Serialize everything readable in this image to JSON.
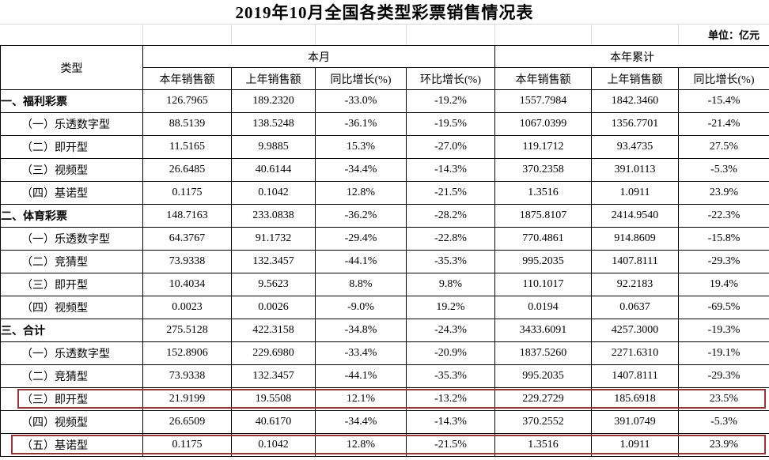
{
  "title": "2019年10月全国各类型彩票销售情况表",
  "unit_label": "单位：亿元",
  "colors": {
    "highlight_border": "#963634",
    "grid_line": "#d9d9d9",
    "table_border": "#000000"
  },
  "table": {
    "type_header": "类型",
    "month_group": "本月",
    "ytd_group": "本年累计",
    "sub_headers": [
      "本年销售额",
      "上年销售额",
      "同比增长(%)",
      "环比增长(%)",
      "本年销售额",
      "上年销售额",
      "同比增长(%)"
    ],
    "rows": [
      {
        "label": "一、福利彩票",
        "level": "section",
        "highlight": false,
        "values": [
          "126.7965",
          "189.2320",
          "-33.0%",
          "-19.2%",
          "1557.7984",
          "1842.3460",
          "-15.4%"
        ]
      },
      {
        "label": "（一）乐透数字型",
        "level": "sub",
        "highlight": false,
        "values": [
          "88.5139",
          "138.5248",
          "-36.1%",
          "-19.5%",
          "1067.0399",
          "1356.7701",
          "-21.4%"
        ]
      },
      {
        "label": "（二）即开型",
        "level": "sub",
        "highlight": false,
        "values": [
          "11.5165",
          "9.9885",
          "15.3%",
          "-27.0%",
          "119.1712",
          "93.4735",
          "27.5%"
        ]
      },
      {
        "label": "（三）视频型",
        "level": "sub",
        "highlight": false,
        "values": [
          "26.6485",
          "40.6144",
          "-34.4%",
          "-14.3%",
          "370.2358",
          "391.0113",
          "-5.3%"
        ]
      },
      {
        "label": "（四）基诺型",
        "level": "sub",
        "highlight": false,
        "values": [
          "0.1175",
          "0.1042",
          "12.8%",
          "-21.5%",
          "1.3516",
          "1.0911",
          "23.9%"
        ]
      },
      {
        "label": "二、体育彩票",
        "level": "section",
        "highlight": false,
        "values": [
          "148.7163",
          "233.0838",
          "-36.2%",
          "-28.2%",
          "1875.8107",
          "2414.9540",
          "-22.3%"
        ]
      },
      {
        "label": "（一）乐透数字型",
        "level": "sub",
        "highlight": false,
        "values": [
          "64.3767",
          "91.1732",
          "-29.4%",
          "-22.8%",
          "770.4861",
          "914.8609",
          "-15.8%"
        ]
      },
      {
        "label": "（二）竞猜型",
        "level": "sub",
        "highlight": false,
        "values": [
          "73.9338",
          "132.3457",
          "-44.1%",
          "-35.3%",
          "995.2035",
          "1407.8111",
          "-29.3%"
        ]
      },
      {
        "label": "（三）即开型",
        "level": "sub",
        "highlight": false,
        "values": [
          "10.4034",
          "9.5623",
          "8.8%",
          "9.8%",
          "110.1017",
          "92.2183",
          "19.4%"
        ]
      },
      {
        "label": "（四）视频型",
        "level": "sub",
        "highlight": false,
        "values": [
          "0.0023",
          "0.0026",
          "-9.0%",
          "19.2%",
          "0.0194",
          "0.0637",
          "-69.5%"
        ]
      },
      {
        "label": "三、合计",
        "level": "section",
        "highlight": false,
        "values": [
          "275.5128",
          "422.3158",
          "-34.8%",
          "-24.3%",
          "3433.6091",
          "4257.3000",
          "-19.3%"
        ]
      },
      {
        "label": "（一）乐透数字型",
        "level": "sub",
        "highlight": false,
        "values": [
          "152.8906",
          "229.6980",
          "-33.4%",
          "-20.9%",
          "1837.5260",
          "2271.6310",
          "-19.1%"
        ]
      },
      {
        "label": "（二）竞猜型",
        "level": "sub",
        "highlight": false,
        "values": [
          "73.9338",
          "132.3457",
          "-44.1%",
          "-35.3%",
          "995.2035",
          "1407.8111",
          "-29.3%"
        ]
      },
      {
        "label": "（三）即开型",
        "level": "sub",
        "highlight": true,
        "values": [
          "21.9199",
          "19.5508",
          "12.1%",
          "-13.2%",
          "229.2729",
          "185.6918",
          "23.5%"
        ]
      },
      {
        "label": "（四）视频型",
        "level": "sub",
        "highlight": false,
        "values": [
          "26.6509",
          "40.6170",
          "-34.4%",
          "-14.3%",
          "370.2552",
          "391.0749",
          "-5.3%"
        ]
      },
      {
        "label": "（五）基诺型",
        "level": "sub",
        "highlight": true,
        "values": [
          "0.1175",
          "0.1042",
          "12.8%",
          "-21.5%",
          "1.3516",
          "1.0911",
          "23.9%"
        ]
      }
    ]
  }
}
